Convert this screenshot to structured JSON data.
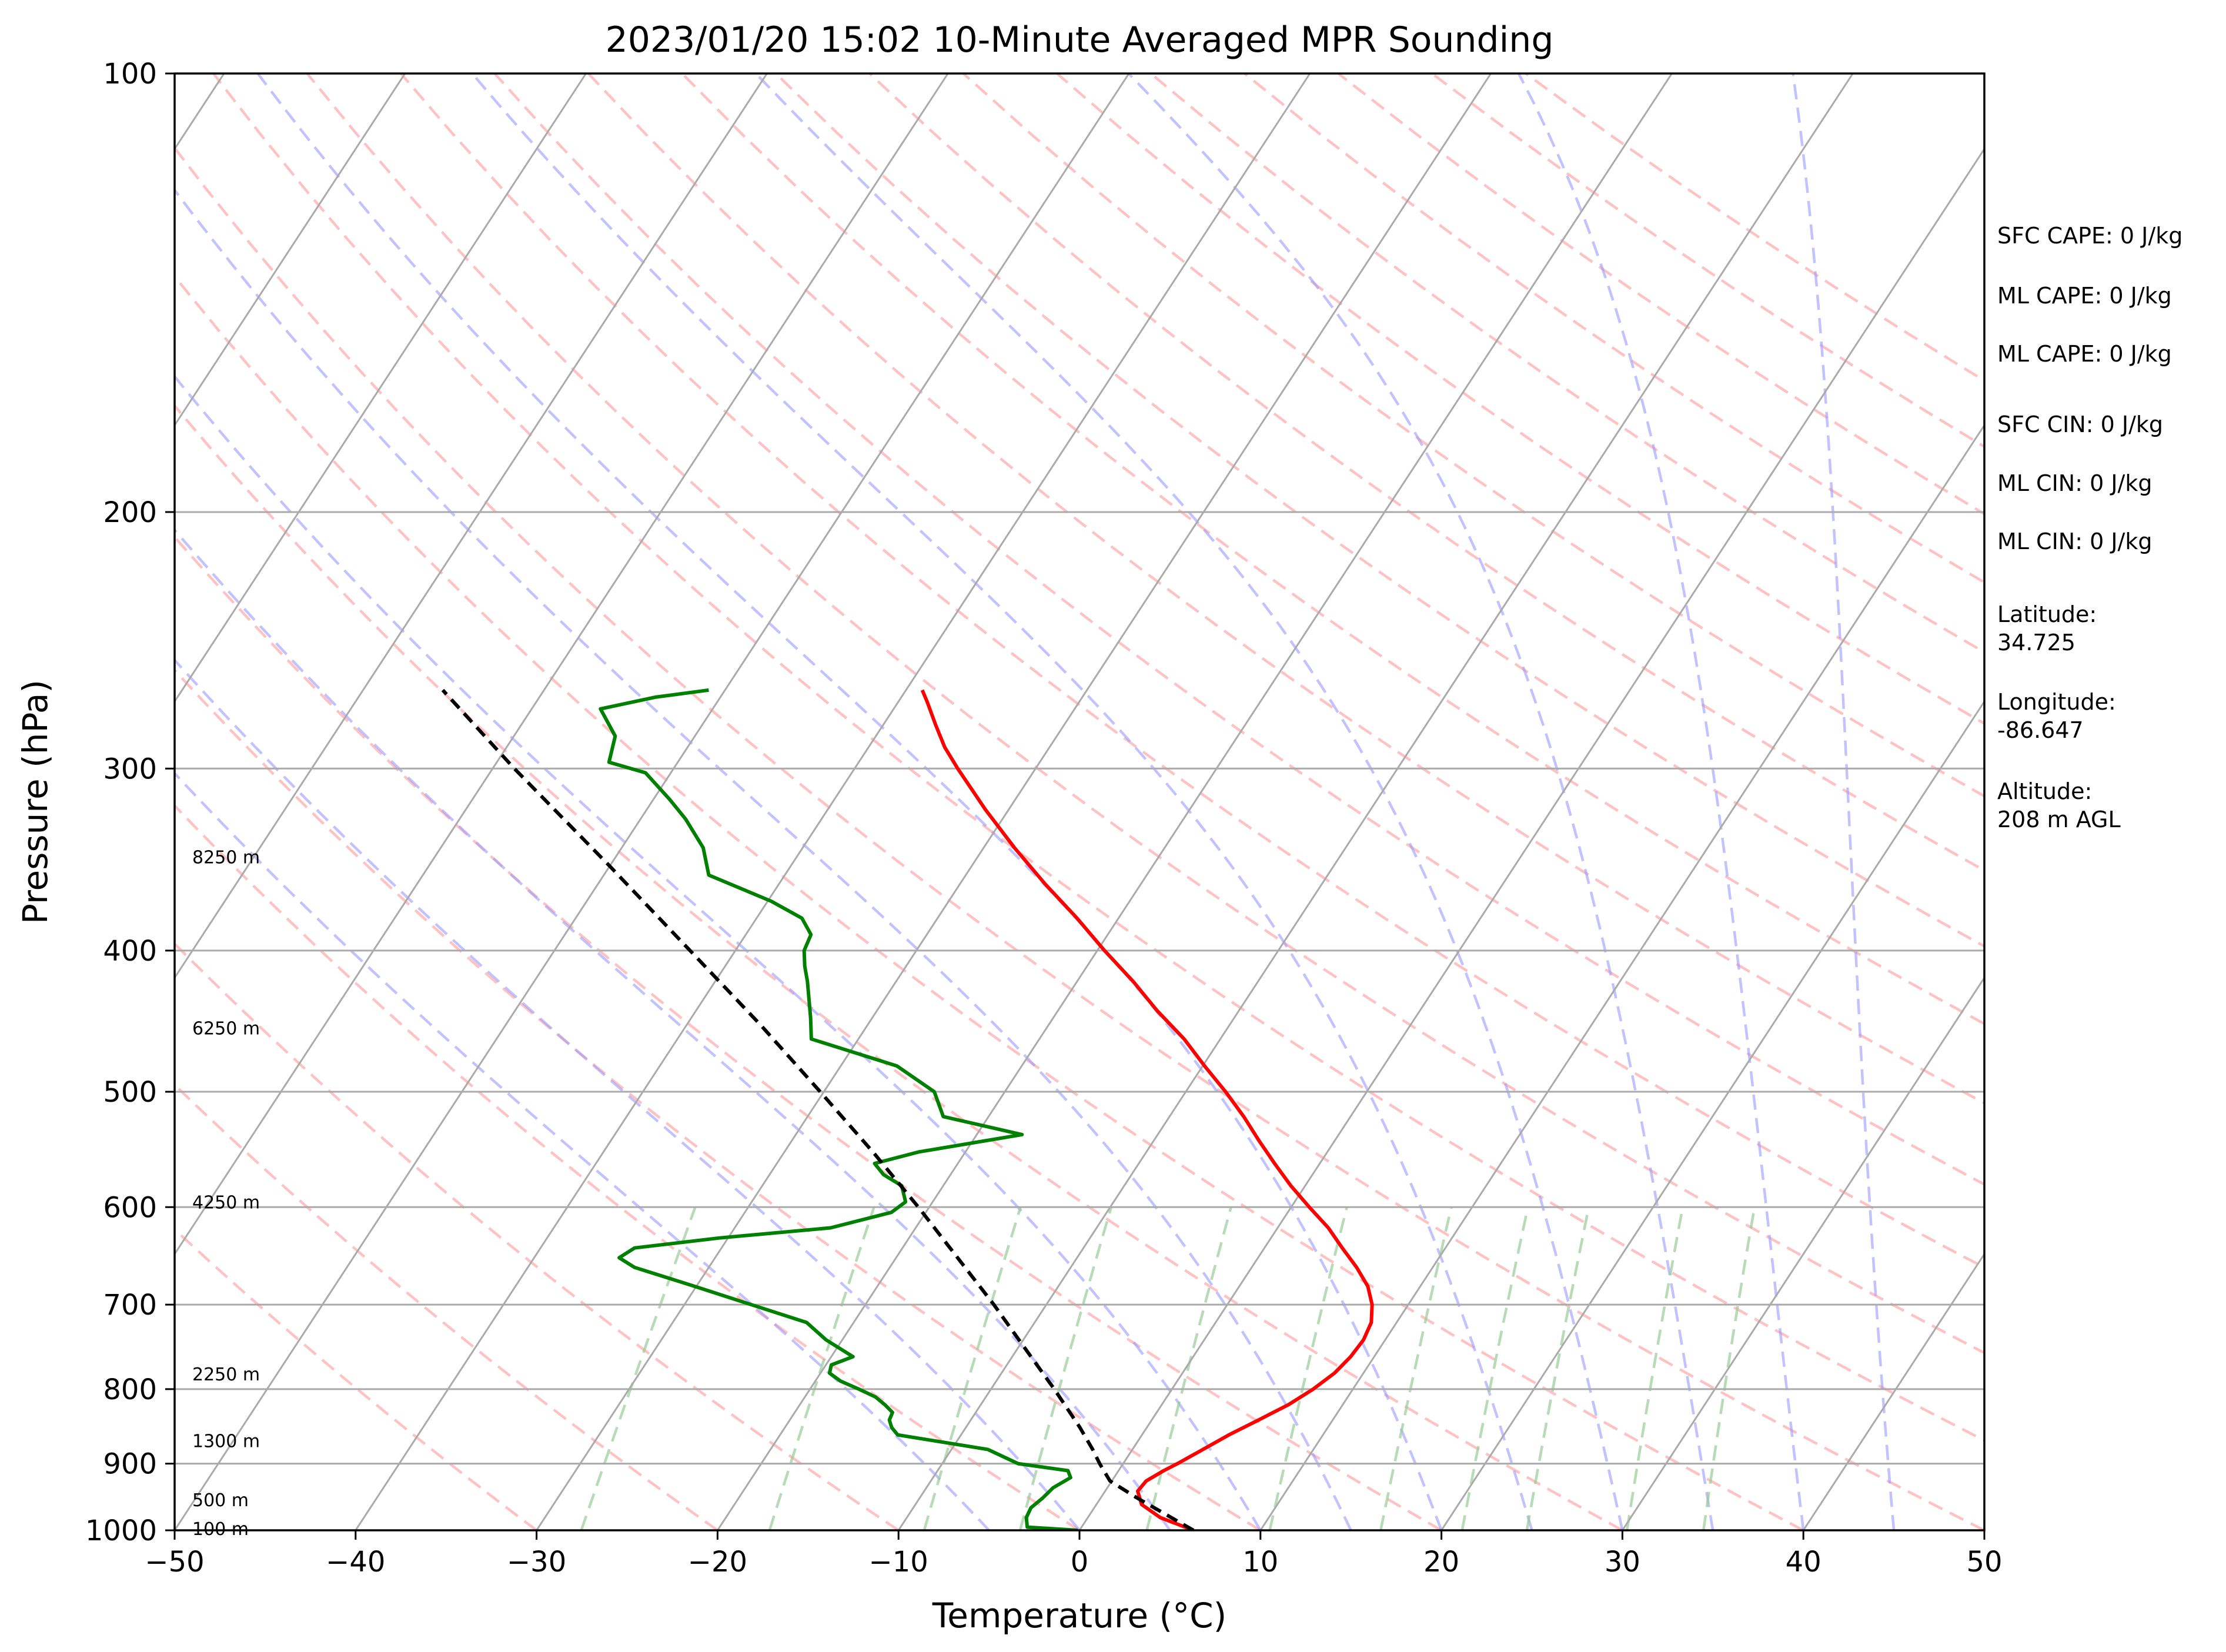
{
  "chart_data": {
    "type": "line",
    "subtype": "skew-T log-P sounding",
    "title": "2023/01/20 15:02 10-Minute Averaged MPR Sounding",
    "xlabel": "Temperature (°C)",
    "ylabel": "Pressure (hPa)",
    "xlim": [
      -50,
      50
    ],
    "ylim": [
      1000,
      100
    ],
    "y_scale": "log",
    "x_ticks": [
      -50,
      -40,
      -30,
      -20,
      -10,
      0,
      10,
      20,
      30,
      40,
      50
    ],
    "x_tick_labels": [
      "−50",
      "−40",
      "−30",
      "−20",
      "−10",
      "0",
      "10",
      "20",
      "30",
      "40",
      "50"
    ],
    "y_ticks": [
      1000,
      900,
      800,
      700,
      600,
      500,
      400,
      300,
      200,
      100
    ],
    "y_tick_labels": [
      "1000",
      "900",
      "800",
      "700",
      "600",
      "500",
      "400",
      "300",
      "200",
      "100"
    ],
    "grid": true,
    "colors": {
      "temperature": "#ff0000",
      "dewpoint": "#008000",
      "parcel": "#000000",
      "dry_adiabat": "#ff9999",
      "moist_adiabat": "#9999ff",
      "mixing_ratio": "#99cc99",
      "isotherm": "#aaaaaa"
    },
    "series": [
      {
        "key": "temperature",
        "p": [
          1000,
          980,
          960,
          940,
          925,
          910,
          900,
          880,
          860,
          840,
          820,
          800,
          780,
          760,
          740,
          720,
          700,
          680,
          660,
          640,
          620,
          600,
          580,
          560,
          540,
          520,
          500,
          480,
          460,
          440,
          420,
          400,
          380,
          360,
          340,
          320,
          300,
          290,
          280,
          270,
          265
        ],
        "t": [
          6.3,
          4.0,
          2.5,
          1.8,
          1.9,
          2.5,
          3.0,
          3.9,
          4.8,
          5.9,
          7.0,
          7.8,
          8.4,
          8.7,
          8.8,
          8.6,
          8.0,
          7.1,
          5.8,
          4.3,
          2.8,
          1.0,
          -0.8,
          -2.5,
          -4.2,
          -5.9,
          -7.8,
          -9.9,
          -12.0,
          -14.5,
          -16.9,
          -19.6,
          -22.3,
          -25.3,
          -28.3,
          -31.3,
          -34.3,
          -35.8,
          -37.1,
          -38.4,
          -39.1
        ]
      },
      {
        "key": "dewpoint",
        "p": [
          1000,
          995,
          980,
          965,
          950,
          935,
          920,
          910,
          900,
          880,
          860,
          850,
          840,
          830,
          820,
          810,
          800,
          790,
          780,
          770,
          760,
          740,
          720,
          700,
          680,
          660,
          650,
          640,
          630,
          620,
          605,
          595,
          580,
          570,
          560,
          550,
          535,
          520,
          500,
          480,
          460,
          445,
          420,
          410,
          400,
          390,
          380,
          370,
          355,
          340,
          325,
          315,
          302,
          297,
          285,
          273,
          268,
          265
        ],
        "t": [
          -0.1,
          -3.0,
          -3.4,
          -3.5,
          -3.2,
          -3.0,
          -2.4,
          -2.8,
          -5.8,
          -8.0,
          -13.5,
          -14.1,
          -14.5,
          -14.6,
          -15.3,
          -16.1,
          -17.3,
          -18.6,
          -19.5,
          -19.7,
          -18.8,
          -20.9,
          -22.6,
          -26.3,
          -30.1,
          -34.1,
          -35.3,
          -34.8,
          -30.5,
          -24.7,
          -21.9,
          -21.5,
          -22.3,
          -23.7,
          -24.6,
          -22.6,
          -17.5,
          -22.5,
          -23.9,
          -26.9,
          -32.6,
          -33.4,
          -34.9,
          -35.6,
          -36.2,
          -36.4,
          -37.5,
          -39.8,
          -44.2,
          -45.5,
          -47.5,
          -49.1,
          -51.4,
          -53.8,
          -54.4,
          -56.2,
          -53.6,
          -50.9
        ]
      },
      {
        "key": "parcel",
        "p": [
          1000,
          950,
          925,
          900,
          880,
          850,
          800,
          750,
          700,
          650,
          600,
          550,
          500,
          450,
          400,
          350,
          300,
          265
        ],
        "t": [
          6.3,
          2.0,
          -0.1,
          -1.3,
          -2.2,
          -3.7,
          -6.5,
          -9.6,
          -12.9,
          -16.6,
          -20.6,
          -25.1,
          -30.2,
          -35.9,
          -42.5,
          -50.0,
          -58.8,
          -65.6
        ]
      }
    ],
    "height_labels": [
      "100 m",
      "500 m",
      "1300 m",
      "2250 m",
      "4250 m",
      "6250 m",
      "8250 m"
    ],
    "height_label_pressures": [
      997,
      953,
      868,
      781,
      595,
      452,
      345
    ],
    "annotations": [
      "SFC CAPE: 0 J/kg",
      "ML CAPE: 0 J/kg",
      "ML CAPE: 0 J/kg",
      "SFC CIN: 0 J/kg",
      "ML CIN: 0 J/kg",
      "ML CIN: 0 J/kg",
      "Latitude:\n34.725",
      "Longitude:\n-86.647",
      "Altitude:\n208 m AGL"
    ]
  }
}
